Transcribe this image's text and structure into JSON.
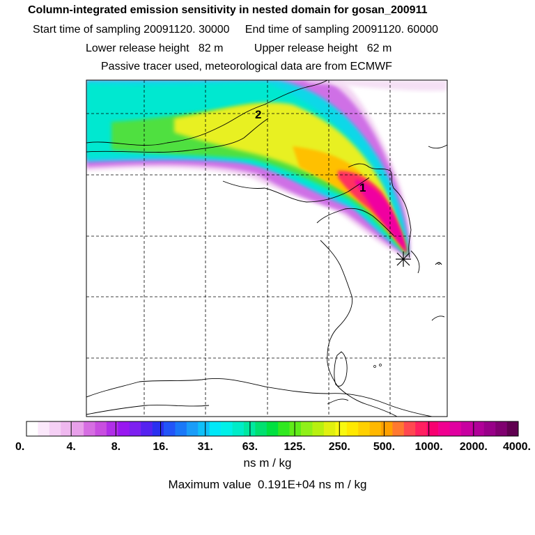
{
  "header": {
    "title": "Column-integrated emission sensitivity in nested domain for gosan_200911",
    "sampling_line": "Start time of sampling 20091120. 30000     End time of sampling 20091120. 60000",
    "release_line": "Lower release height   82 m          Upper release height   62 m",
    "model_line": "Passive tracer used, meteorological data are from ECMWF"
  },
  "map": {
    "trajectory_labels": [
      "1",
      "2"
    ],
    "release_marker": "star-icon"
  },
  "colorbar": {
    "tick_labels": [
      "0.",
      "4.",
      "8.",
      "16.",
      "31.",
      "63.",
      "125.",
      "250.",
      "500.",
      "1000.",
      "2000.",
      "4000."
    ],
    "colors": [
      "#ffffff",
      "#fbe8fb",
      "#f5d0f5",
      "#efb8ef",
      "#e8a0ea",
      "#d66ee2",
      "#c84ee0",
      "#b02ee8",
      "#9818f0",
      "#7d20f0",
      "#5522f0",
      "#2a30f0",
      "#2255f8",
      "#1a78f8",
      "#1a9cf8",
      "#10bff8",
      "#00e8f8",
      "#00f0e8",
      "#00ecc8",
      "#00e8a0",
      "#00e070",
      "#00e040",
      "#30e820",
      "#60ec18",
      "#90f018",
      "#b8f010",
      "#e0f010",
      "#f8f810",
      "#ffe800",
      "#ffd000",
      "#ffb800",
      "#ffa000",
      "#ff7830",
      "#ff4850",
      "#ff2060",
      "#f80070",
      "#f00090",
      "#e000a0",
      "#c800a0",
      "#b00098",
      "#980088",
      "#800070",
      "#600050"
    ],
    "units": "ns m / kg",
    "maximum": "Maximum value  0.191E+04 ns m / kg"
  }
}
